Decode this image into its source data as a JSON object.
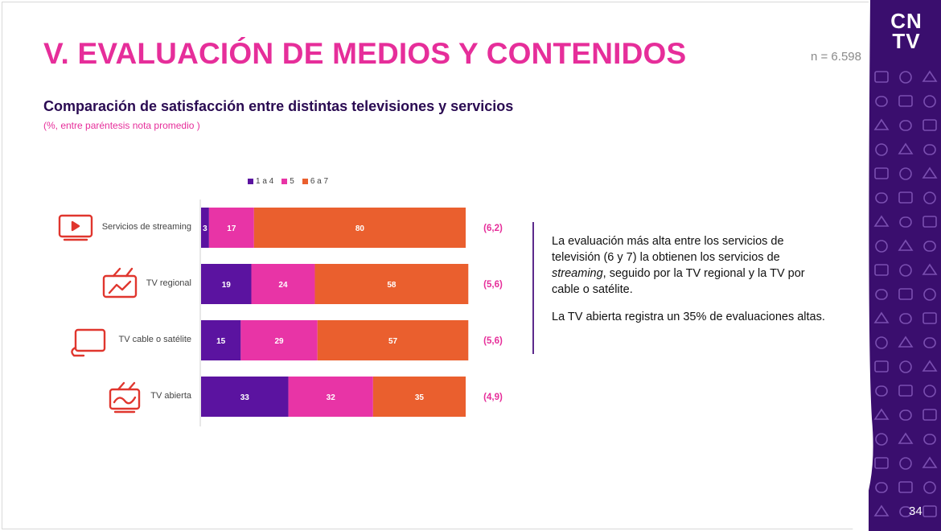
{
  "slide": {
    "title": "V. EVALUACIÓN DE MEDIOS Y CONTENIDOS",
    "sample_size": "n = 6.598",
    "subtitle": "Comparación de satisfacción entre distintas televisiones y servicios",
    "subtitle_note": "(%, entre paréntesis nota promedio )",
    "logo_text": [
      "CN",
      "TV"
    ],
    "page_number": "34"
  },
  "commentary": {
    "paragraph1_before": "La evaluación más alta entre los servicios de televisión (6 y 7) la obtienen los servicios de ",
    "paragraph1_italic": "streaming",
    "paragraph1_after": ", seguido por la TV regional y la TV por cable o satélite.",
    "paragraph2": "La TV abierta registra un 35% de evaluaciones altas."
  },
  "colors": {
    "accent_pink": "#e62e9a",
    "purple": "#5b13a0",
    "orange": "#ea5f2e",
    "brand_dark": "#3a0e6e",
    "icon_red": "#e0362e"
  },
  "chart_data": {
    "type": "bar",
    "orientation": "horizontal",
    "stacked": true,
    "legend_position": "top",
    "xlim": [
      0,
      100
    ],
    "categories": [
      "Servicios de streaming",
      "TV regional",
      "TV cable o satélite",
      "TV abierta"
    ],
    "category_icons": [
      "streaming-screen-icon",
      "regional-tv-icon",
      "cable-tv-icon",
      "open-tv-icon"
    ],
    "series": [
      {
        "name": "1 a 4",
        "color": "#5b13a0",
        "values": [
          3,
          19,
          15,
          33
        ]
      },
      {
        "name": "5",
        "color": "#e834a6",
        "values": [
          17,
          24,
          29,
          32
        ]
      },
      {
        "name": "6 a 7",
        "color": "#ea5f2e",
        "values": [
          80,
          58,
          57,
          35
        ]
      }
    ],
    "averages": [
      "(6,2)",
      "(5,6)",
      "(5,6)",
      "(4,9)"
    ]
  }
}
